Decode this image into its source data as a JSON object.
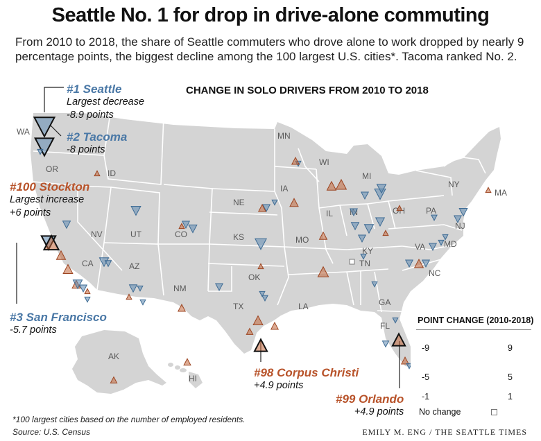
{
  "title": "Seattle No. 1 for drop in drive-alone commuting",
  "subtitle": "From 2010 to 2018, the share of Seattle commuters who drove alone to work dropped by nearly 9 percentage points, the biggest decline among the 100 largest U.S. cities*. Tacoma ranked No. 2.",
  "chart_title": "CHANGE IN SOLO DRIVERS FROM 2010 TO 2018",
  "colors": {
    "decrease": "#5d89b0",
    "increase": "#c1663a",
    "land": "#d4d4d4",
    "state_border": "#ffffff"
  },
  "callouts": {
    "seattle": {
      "rank": "#1",
      "city": "Seattle",
      "note": "Largest decrease",
      "value": "-8.9 points"
    },
    "tacoma": {
      "rank": "#2",
      "city": "Tacoma",
      "value": "-8 points"
    },
    "stockton": {
      "rank": "#100",
      "city": "Stockton",
      "note": "Largest increase",
      "value": "+6 points"
    },
    "sf": {
      "rank": "#3",
      "city": "San Francisco",
      "value": "-5.7 points"
    },
    "corpus": {
      "rank": "#98",
      "city": "Corpus Christi",
      "value": "+4.9 points"
    },
    "orlando": {
      "rank": "#99",
      "city": "Orlando",
      "value": "+4.9 points"
    }
  },
  "state_labels": [
    "WA",
    "OR",
    "ID",
    "CA",
    "NV",
    "UT",
    "AZ",
    "CO",
    "NM",
    "MN",
    "WI",
    "MI",
    "IA",
    "NE",
    "KS",
    "OK",
    "TX",
    "MO",
    "IL",
    "IN",
    "OH",
    "KY",
    "TN",
    "LA",
    "GA",
    "FL",
    "NC",
    "VA",
    "MD",
    "NJ",
    "PA",
    "NY",
    "MA",
    "AK",
    "HI"
  ],
  "legend": {
    "title": "POINT CHANGE (2010-2018)",
    "rows": [
      {
        "neg": "-9",
        "pos": "9"
      },
      {
        "neg": "-5",
        "pos": "5"
      },
      {
        "neg": "-1",
        "pos": "1"
      }
    ],
    "no_change": "No change"
  },
  "chart_data": {
    "type": "proportional-symbol map",
    "title": "CHANGE IN SOLO DRIVERS FROM 2010 TO 2018",
    "legend_title": "POINT CHANGE (2010-2018)",
    "legend_scale": [
      -9,
      -5,
      -1,
      1,
      5,
      9
    ],
    "labeled_cities": [
      {
        "city": "Seattle",
        "rank": 1,
        "change": -8.9
      },
      {
        "city": "Tacoma",
        "rank": 2,
        "change": -8.0
      },
      {
        "city": "San Francisco",
        "rank": 3,
        "change": -5.7
      },
      {
        "city": "Corpus Christi",
        "rank": 98,
        "change": 4.9
      },
      {
        "city": "Orlando",
        "rank": 99,
        "change": 4.9
      },
      {
        "city": "Stockton",
        "rank": 100,
        "change": 6.0
      }
    ]
  },
  "footnote": "*100 largest cities based on the number of employed residents.",
  "source": "Source: U.S. Census",
  "credit": "EMILY M. ENG / THE SEATTLE TIMES"
}
